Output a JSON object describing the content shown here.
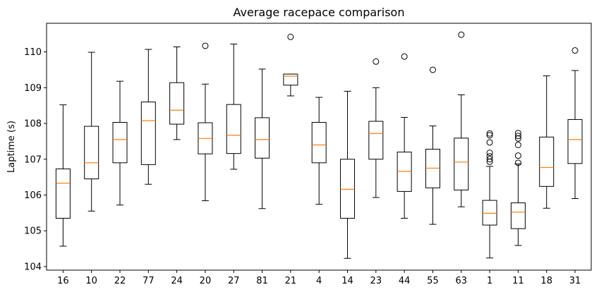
{
  "chart_data": {
    "type": "box",
    "title": "Average racepace comparison",
    "xlabel": "",
    "ylabel": "Laptime (s)",
    "ylim": [
      103.9,
      110.8
    ],
    "yticks": [
      104,
      105,
      106,
      107,
      108,
      109,
      110
    ],
    "grid": false,
    "legend": "none",
    "colors": {
      "box": "#000000",
      "median": "#ff7f0e",
      "background": "#ffffff"
    },
    "categories": [
      "16",
      "10",
      "22",
      "77",
      "24",
      "20",
      "27",
      "81",
      "21",
      "4",
      "14",
      "23",
      "44",
      "55",
      "63",
      "1",
      "11",
      "18",
      "31"
    ],
    "boxes": [
      {
        "label": "16",
        "whisker_low": 104.57,
        "q1": 105.35,
        "median": 106.33,
        "q3": 106.73,
        "whisker_high": 108.52,
        "fliers": []
      },
      {
        "label": "10",
        "whisker_low": 105.55,
        "q1": 106.45,
        "median": 106.9,
        "q3": 107.92,
        "whisker_high": 109.99,
        "fliers": []
      },
      {
        "label": "22",
        "whisker_low": 105.72,
        "q1": 106.9,
        "median": 107.55,
        "q3": 108.03,
        "whisker_high": 109.18,
        "fliers": []
      },
      {
        "label": "77",
        "whisker_low": 106.3,
        "q1": 106.85,
        "median": 108.08,
        "q3": 108.6,
        "whisker_high": 110.07,
        "fliers": []
      },
      {
        "label": "24",
        "whisker_low": 107.55,
        "q1": 107.98,
        "median": 108.37,
        "q3": 109.14,
        "whisker_high": 110.14,
        "fliers": []
      },
      {
        "label": "20",
        "whisker_low": 105.84,
        "q1": 107.15,
        "median": 107.58,
        "q3": 108.02,
        "whisker_high": 109.1,
        "fliers": [
          110.17
        ]
      },
      {
        "label": "27",
        "whisker_low": 106.72,
        "q1": 107.16,
        "median": 107.67,
        "q3": 108.53,
        "whisker_high": 110.22,
        "fliers": []
      },
      {
        "label": "81",
        "whisker_low": 105.62,
        "q1": 107.03,
        "median": 107.55,
        "q3": 108.16,
        "whisker_high": 109.52,
        "fliers": []
      },
      {
        "label": "21",
        "whisker_low": 108.77,
        "q1": 109.07,
        "median": 109.32,
        "q3": 109.38,
        "whisker_high": 109.38,
        "fliers": [
          110.42
        ]
      },
      {
        "label": "4",
        "whisker_low": 105.74,
        "q1": 106.9,
        "median": 107.4,
        "q3": 108.03,
        "whisker_high": 108.73,
        "fliers": []
      },
      {
        "label": "14",
        "whisker_low": 104.23,
        "q1": 105.35,
        "median": 106.16,
        "q3": 107.0,
        "whisker_high": 108.9,
        "fliers": []
      },
      {
        "label": "23",
        "whisker_low": 105.93,
        "q1": 107.0,
        "median": 107.72,
        "q3": 108.06,
        "whisker_high": 109.0,
        "fliers": [
          109.73
        ]
      },
      {
        "label": "44",
        "whisker_low": 105.35,
        "q1": 106.1,
        "median": 106.66,
        "q3": 107.2,
        "whisker_high": 108.17,
        "fliers": [
          109.87
        ]
      },
      {
        "label": "55",
        "whisker_low": 105.18,
        "q1": 106.2,
        "median": 106.75,
        "q3": 107.28,
        "whisker_high": 107.93,
        "fliers": [
          109.5
        ]
      },
      {
        "label": "63",
        "whisker_low": 105.67,
        "q1": 106.14,
        "median": 106.92,
        "q3": 107.59,
        "whisker_high": 108.8,
        "fliers": [
          110.48
        ]
      },
      {
        "label": "1",
        "whisker_low": 104.24,
        "q1": 105.16,
        "median": 105.49,
        "q3": 105.85,
        "whisker_high": 106.8,
        "fliers": [
          106.93,
          107.0,
          107.08,
          107.18,
          107.47,
          107.67,
          107.72
        ]
      },
      {
        "label": "11",
        "whisker_low": 104.59,
        "q1": 105.06,
        "median": 105.52,
        "q3": 105.78,
        "whisker_high": 106.87,
        "fliers": [
          106.9,
          107.1,
          107.4,
          107.58,
          107.65,
          107.73
        ]
      },
      {
        "label": "18",
        "whisker_low": 105.63,
        "q1": 106.24,
        "median": 106.77,
        "q3": 107.62,
        "whisker_high": 109.33,
        "fliers": []
      },
      {
        "label": "31",
        "whisker_low": 105.9,
        "q1": 106.88,
        "median": 107.55,
        "q3": 108.11,
        "whisker_high": 109.48,
        "fliers": [
          110.04
        ]
      }
    ]
  }
}
